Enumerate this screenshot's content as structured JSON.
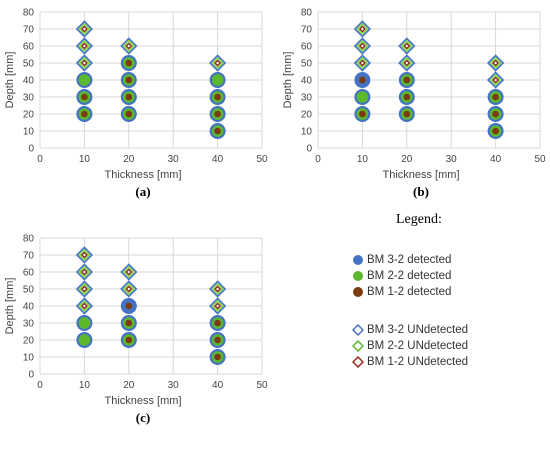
{
  "chart_data": [
    {
      "type": "scatter",
      "panel_label": "(a)",
      "xlabel": "Thickness [mm]",
      "ylabel": "Depth [mm]",
      "xlim": [
        0,
        50
      ],
      "ylim": [
        0,
        80
      ],
      "xticks": [
        0,
        10,
        20,
        30,
        40,
        50
      ],
      "yticks": [
        0,
        10,
        20,
        30,
        40,
        50,
        60,
        70,
        80
      ],
      "grid": true,
      "points": [
        {
          "x": 10,
          "y": 20,
          "outer": "bm32",
          "mid": "bm22",
          "inner": "bm12"
        },
        {
          "x": 10,
          "y": 30,
          "outer": "bm32",
          "mid": "bm22",
          "inner": "bm12"
        },
        {
          "x": 10,
          "y": 40,
          "outer": "bm32",
          "mid": "bm22",
          "inner": "bm22"
        },
        {
          "x": 10,
          "y": 50,
          "shape": "diamond"
        },
        {
          "x": 10,
          "y": 60,
          "shape": "diamond"
        },
        {
          "x": 10,
          "y": 70,
          "shape": "diamond"
        },
        {
          "x": 20,
          "y": 20,
          "outer": "bm32",
          "mid": "bm22",
          "inner": "bm12"
        },
        {
          "x": 20,
          "y": 30,
          "outer": "bm32",
          "mid": "bm22",
          "inner": "bm12"
        },
        {
          "x": 20,
          "y": 40,
          "outer": "bm32",
          "mid": "bm22",
          "inner": "bm12"
        },
        {
          "x": 20,
          "y": 50,
          "outer": "bm32",
          "mid": "bm22",
          "inner": "bm12"
        },
        {
          "x": 20,
          "y": 60,
          "shape": "diamond"
        },
        {
          "x": 40,
          "y": 10,
          "outer": "bm32",
          "mid": "bm22",
          "inner": "bm12"
        },
        {
          "x": 40,
          "y": 20,
          "outer": "bm32",
          "mid": "bm22",
          "inner": "bm12"
        },
        {
          "x": 40,
          "y": 30,
          "outer": "bm32",
          "mid": "bm22",
          "inner": "bm12"
        },
        {
          "x": 40,
          "y": 40,
          "outer": "bm32",
          "mid": "bm22",
          "inner": "bm22"
        },
        {
          "x": 40,
          "y": 50,
          "shape": "diamond"
        }
      ]
    },
    {
      "type": "scatter",
      "panel_label": "(b)",
      "xlabel": "Thickness [mm]",
      "ylabel": "Depth [mm]",
      "xlim": [
        0,
        50
      ],
      "ylim": [
        0,
        80
      ],
      "xticks": [
        0,
        10,
        20,
        30,
        40,
        50
      ],
      "yticks": [
        0,
        10,
        20,
        30,
        40,
        50,
        60,
        70,
        80
      ],
      "grid": true,
      "points": [
        {
          "x": 10,
          "y": 20,
          "outer": "bm32",
          "mid": "bm22",
          "inner": "bm12"
        },
        {
          "x": 10,
          "y": 30,
          "outer": "bm32",
          "mid": "bm22",
          "inner": "bm22"
        },
        {
          "x": 10,
          "y": 40,
          "outer": "bm32",
          "mid": "bm32",
          "inner": "bm12"
        },
        {
          "x": 10,
          "y": 50,
          "shape": "diamond"
        },
        {
          "x": 10,
          "y": 60,
          "shape": "diamond"
        },
        {
          "x": 10,
          "y": 70,
          "shape": "diamond"
        },
        {
          "x": 20,
          "y": 20,
          "outer": "bm32",
          "mid": "bm22",
          "inner": "bm12"
        },
        {
          "x": 20,
          "y": 30,
          "outer": "bm32",
          "mid": "bm22",
          "inner": "bm12"
        },
        {
          "x": 20,
          "y": 40,
          "outer": "bm32",
          "mid": "bm22",
          "inner": "bm12"
        },
        {
          "x": 20,
          "y": 50,
          "shape": "diamond"
        },
        {
          "x": 20,
          "y": 60,
          "shape": "diamond"
        },
        {
          "x": 40,
          "y": 10,
          "outer": "bm32",
          "mid": "bm22",
          "inner": "bm12"
        },
        {
          "x": 40,
          "y": 20,
          "outer": "bm32",
          "mid": "bm22",
          "inner": "bm12"
        },
        {
          "x": 40,
          "y": 30,
          "outer": "bm32",
          "mid": "bm22",
          "inner": "bm12"
        },
        {
          "x": 40,
          "y": 40,
          "shape": "diamond"
        },
        {
          "x": 40,
          "y": 50,
          "shape": "diamond"
        }
      ]
    },
    {
      "type": "scatter",
      "panel_label": "(c)",
      "xlabel": "Thickness [mm]",
      "ylabel": "Depth [mm]",
      "xlim": [
        0,
        50
      ],
      "ylim": [
        0,
        80
      ],
      "xticks": [
        0,
        10,
        20,
        30,
        40,
        50
      ],
      "yticks": [
        0,
        10,
        20,
        30,
        40,
        50,
        60,
        70,
        80
      ],
      "grid": true,
      "points": [
        {
          "x": 10,
          "y": 20,
          "outer": "bm32",
          "mid": "bm22",
          "inner": "bm22"
        },
        {
          "x": 10,
          "y": 30,
          "outer": "bm32",
          "mid": "bm22",
          "inner": "bm22"
        },
        {
          "x": 10,
          "y": 40,
          "shape": "diamond"
        },
        {
          "x": 10,
          "y": 50,
          "shape": "diamond"
        },
        {
          "x": 10,
          "y": 60,
          "shape": "diamond"
        },
        {
          "x": 10,
          "y": 70,
          "shape": "diamond"
        },
        {
          "x": 20,
          "y": 20,
          "outer": "bm32",
          "mid": "bm22",
          "inner": "bm12"
        },
        {
          "x": 20,
          "y": 30,
          "outer": "bm32",
          "mid": "bm22",
          "inner": "bm12"
        },
        {
          "x": 20,
          "y": 40,
          "outer": "bm32",
          "mid": "bm32",
          "inner": "bm12"
        },
        {
          "x": 20,
          "y": 50,
          "shape": "diamond"
        },
        {
          "x": 20,
          "y": 60,
          "shape": "diamond"
        },
        {
          "x": 40,
          "y": 10,
          "outer": "bm32",
          "mid": "bm22",
          "inner": "bm12"
        },
        {
          "x": 40,
          "y": 20,
          "outer": "bm32",
          "mid": "bm22",
          "inner": "bm12"
        },
        {
          "x": 40,
          "y": 30,
          "outer": "bm32",
          "mid": "bm22",
          "inner": "bm12"
        },
        {
          "x": 40,
          "y": 40,
          "shape": "diamond"
        },
        {
          "x": 40,
          "y": 50,
          "shape": "diamond"
        }
      ]
    }
  ],
  "colors": {
    "bm32": "#4472C4",
    "bm22": "#5CB82C",
    "bm12": "#7B3A10",
    "diamond_outer": "#4472C4",
    "diamond_mid": "#86D54A",
    "diamond_inner": "#8B2A1A",
    "grid": "#D9D9D9",
    "tick_text": "#595959"
  },
  "legend": {
    "title": "Legend:",
    "detected": [
      {
        "label": "BM 3-2 detected",
        "color": "#4472C4"
      },
      {
        "label": "BM 2-2 detected",
        "color": "#5CB82C"
      },
      {
        "label": "BM 1-2 detected",
        "color": "#7B3A10"
      }
    ],
    "undetected": [
      {
        "label": "BM 3-2 UNdetected",
        "color": "#4472C4"
      },
      {
        "label": "BM 2-2 UNdetected",
        "color": "#5CB82C"
      },
      {
        "label": "BM 1-2 UNdetected",
        "color": "#A0281A"
      }
    ]
  }
}
